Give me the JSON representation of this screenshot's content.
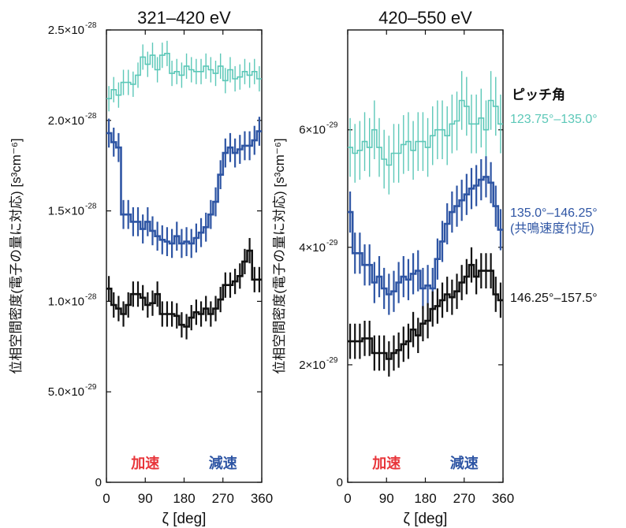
{
  "chart_data": [
    {
      "type": "line",
      "title": "321–420 eV",
      "xlabel": "ζ [deg]",
      "ylabel": "位相空間密度(電子の量に対応) [s³cm⁻⁶]",
      "xlim": [
        0,
        360
      ],
      "ylim": [
        0,
        2.5e-28
      ],
      "xticks": [
        "0",
        "90",
        "180",
        "270",
        "360"
      ],
      "yticks": [
        {
          "value": 0,
          "label": "0"
        },
        {
          "value": 5e-29,
          "label": "5.0×10",
          "exp": "-29"
        },
        {
          "value": 1e-28,
          "label": "1.0×10",
          "exp": "-28"
        },
        {
          "value": 1.5e-28,
          "label": "1.5×10",
          "exp": "-28"
        },
        {
          "value": 2e-28,
          "label": "2.0×10",
          "exp": "-28"
        },
        {
          "value": 2.5e-28,
          "label": "2.5×10",
          "exp": "-28"
        }
      ],
      "annotations": [
        {
          "text": "加速",
          "color": "#e8353a",
          "x": 90
        },
        {
          "text": "減速",
          "color": "#2e55a4",
          "x": 270
        }
      ],
      "x": [
        0,
        11.25,
        22.5,
        33.75,
        45,
        56.25,
        67.5,
        78.75,
        90,
        101.25,
        112.5,
        123.75,
        135,
        146.25,
        157.5,
        168.75,
        180,
        191.25,
        202.5,
        213.75,
        225,
        236.25,
        247.5,
        258.75,
        270,
        281.25,
        292.5,
        303.75,
        315,
        326.25,
        337.5,
        348.75
      ],
      "series": [
        {
          "name": "123.75°–135.0°",
          "color": "#5cc8b8",
          "values": [
            2.12e-28,
            2.17e-28,
            2.14e-28,
            2.21e-28,
            2.21e-28,
            2.2e-28,
            2.25e-28,
            2.35e-28,
            2.31e-28,
            2.36e-28,
            2.28e-28,
            2.36e-28,
            2.37e-28,
            2.26e-28,
            2.27e-28,
            2.25e-28,
            2.3e-28,
            2.28e-28,
            2.27e-28,
            2.27e-28,
            2.3e-28,
            2.28e-28,
            2.26e-28,
            2.3e-28,
            2.22e-28,
            2.28e-28,
            2.23e-28,
            2.24e-28,
            2.27e-28,
            2.25e-28,
            2.27e-28,
            2.23e-28
          ],
          "errors": [
            7e-30,
            7e-30,
            7e-30,
            7e-30,
            7e-30,
            7e-30,
            7e-30,
            7e-30,
            7e-30,
            7e-30,
            7e-30,
            7e-30,
            7e-30,
            7e-30,
            7e-30,
            7e-30,
            7e-30,
            7e-30,
            7e-30,
            7e-30,
            7e-30,
            7e-30,
            7e-30,
            7e-30,
            7e-30,
            7e-30,
            7e-30,
            7e-30,
            7e-30,
            7e-30,
            7e-30,
            7e-30
          ]
        },
        {
          "name": "135.0°–146.25°",
          "color": "#2e55a4",
          "values": [
            1.93e-28,
            1.88e-28,
            1.85e-28,
            1.48e-28,
            1.48e-28,
            1.44e-28,
            1.44e-28,
            1.4e-28,
            1.44e-28,
            1.39e-28,
            1.36e-28,
            1.34e-28,
            1.33e-28,
            1.32e-28,
            1.36e-28,
            1.32e-28,
            1.33e-28,
            1.32e-28,
            1.35e-28,
            1.38e-28,
            1.41e-28,
            1.48e-28,
            1.55e-28,
            1.7e-28,
            1.82e-28,
            1.85e-28,
            1.82e-28,
            1.84e-28,
            1.86e-28,
            1.86e-28,
            1.89e-28,
            1.94e-28
          ],
          "errors": [
            8e-30,
            8e-30,
            8e-30,
            8e-30,
            8e-30,
            8e-30,
            8e-30,
            8e-30,
            8e-30,
            8e-30,
            8e-30,
            8e-30,
            8e-30,
            8e-30,
            8e-30,
            8e-30,
            8e-30,
            8e-30,
            8e-30,
            8e-30,
            8e-30,
            8e-30,
            8e-30,
            8e-30,
            8e-30,
            8e-30,
            8e-30,
            8e-30,
            8e-30,
            8e-30,
            8e-30,
            8e-30
          ]
        },
        {
          "name": "146.25°–157.5°",
          "color": "#111111",
          "values": [
            1.07e-28,
            9.8e-29,
            9.6e-29,
            9.3e-29,
            9.8e-29,
            1.04e-28,
            1.04e-28,
            1.02e-28,
            9.8e-29,
            9.9e-29,
            1.04e-28,
            9.3e-29,
            9.3e-29,
            9.3e-29,
            9.2e-29,
            8.7e-29,
            8.6e-29,
            9.1e-29,
            9.4e-29,
            9.3e-29,
            9.6e-29,
            9.3e-29,
            9.6e-29,
            1.01e-28,
            1.09e-28,
            1.09e-28,
            1.11e-28,
            1.14e-28,
            1.22e-28,
            1.28e-28,
            1.12e-28,
            1.12e-28
          ],
          "errors": [
            7e-30,
            7e-30,
            7e-30,
            7e-30,
            7e-30,
            7e-30,
            7e-30,
            7e-30,
            7e-30,
            7e-30,
            7e-30,
            7e-30,
            7e-30,
            7e-30,
            7e-30,
            7e-30,
            7e-30,
            7e-30,
            7e-30,
            7e-30,
            7e-30,
            7e-30,
            7e-30,
            7e-30,
            7e-30,
            7e-30,
            7e-30,
            7e-30,
            7e-30,
            7e-30,
            7e-30,
            7e-30
          ]
        }
      ]
    },
    {
      "type": "line",
      "title": "420–550 eV",
      "xlabel": "ζ [deg]",
      "ylabel": "位相空間密度(電子の量に対応) [s³cm⁻⁶]",
      "xlim": [
        0,
        360
      ],
      "ylim": [
        0,
        7.7e-29
      ],
      "xticks": [
        "0",
        "90",
        "180",
        "270",
        "360"
      ],
      "yticks": [
        {
          "value": 0,
          "label": "0"
        },
        {
          "value": 2e-29,
          "label": "2×10",
          "exp": "-29"
        },
        {
          "value": 4e-29,
          "label": "4×10",
          "exp": "-29"
        },
        {
          "value": 6e-29,
          "label": "6×10",
          "exp": "-29"
        }
      ],
      "annotations": [
        {
          "text": "加速",
          "color": "#e8353a",
          "x": 90
        },
        {
          "text": "減速",
          "color": "#2e55a4",
          "x": 270
        }
      ],
      "legend_title": "ピッチ角",
      "legend_labels": [
        {
          "text": "123.75°–135.0°",
          "color": "#5cc8b8",
          "y": 6.2e-29
        },
        {
          "text": "135.0°–146.25°",
          "sub": "(共鳴速度付近)",
          "color": "#2e55a4",
          "y": 4.6e-29
        },
        {
          "text": "146.25°–157.5°",
          "color": "#111111",
          "y": 3.15e-29
        }
      ],
      "x": [
        0,
        11.25,
        22.5,
        33.75,
        45,
        56.25,
        67.5,
        78.75,
        90,
        101.25,
        112.5,
        123.75,
        135,
        146.25,
        157.5,
        168.75,
        180,
        191.25,
        202.5,
        213.75,
        225,
        236.25,
        247.5,
        258.75,
        270,
        281.25,
        292.5,
        303.75,
        315,
        326.25,
        337.5,
        348.75
      ],
      "series": [
        {
          "name": "123.75°–135.0°",
          "color": "#5cc8b8",
          "values": [
            5.7e-29,
            5.6e-29,
            5.65e-29,
            5.8e-29,
            5.7e-29,
            6e-29,
            5.7e-29,
            5.5e-29,
            5.4e-29,
            5.6e-29,
            5.6e-29,
            5.75e-29,
            5.8e-29,
            5.65e-29,
            5.8e-29,
            5.8e-29,
            5.7e-29,
            5.9e-29,
            6e-29,
            6e-29,
            5.9e-29,
            6.1e-29,
            6.15e-29,
            6.5e-29,
            6.4e-29,
            6.1e-29,
            6.1e-29,
            6.2e-29,
            6e-29,
            6.5e-29,
            6.4e-29,
            6.1e-29
          ],
          "errors": [
            5e-30,
            5e-30,
            5e-30,
            5e-30,
            5e-30,
            5e-30,
            5e-30,
            5e-30,
            5e-30,
            5e-30,
            5e-30,
            5e-30,
            5e-30,
            5e-30,
            5e-30,
            5e-30,
            5e-30,
            5e-30,
            5e-30,
            5e-30,
            5e-30,
            5e-30,
            5e-30,
            5e-30,
            5e-30,
            5e-30,
            5e-30,
            5e-30,
            5e-30,
            5e-30,
            5e-30,
            5e-30
          ]
        },
        {
          "name": "135.0°–146.25°",
          "color": "#2e55a4",
          "values": [
            4.6e-29,
            3.9e-29,
            3.9e-29,
            3.7e-29,
            3.7e-29,
            3.4e-29,
            3.5e-29,
            3.3e-29,
            3.2e-29,
            3.25e-29,
            3.4e-29,
            3.5e-29,
            3.45e-29,
            3.55e-29,
            3.6e-29,
            3.3e-29,
            3.35e-29,
            3.3e-29,
            3.8e-29,
            4.1e-29,
            4.4e-29,
            4.6e-29,
            4.7e-29,
            4.8e-29,
            4.9e-29,
            5e-29,
            5.05e-29,
            5.15e-29,
            5.2e-29,
            5.1e-29,
            4.7e-29,
            4.3e-29
          ],
          "errors": [
            3.5e-30,
            3.5e-30,
            3.5e-30,
            3.5e-30,
            3.5e-30,
            3.5e-30,
            3.5e-30,
            3.5e-30,
            3.5e-30,
            3.5e-30,
            3.5e-30,
            3.5e-30,
            3.5e-30,
            3.5e-30,
            3.5e-30,
            3.5e-30,
            3.5e-30,
            3.5e-30,
            3.5e-30,
            3.5e-30,
            3.5e-30,
            3.5e-30,
            3.5e-30,
            3.5e-30,
            3.5e-30,
            3.5e-30,
            3.5e-30,
            3.5e-30,
            3.5e-30,
            3.5e-30,
            3.5e-30,
            3.5e-30
          ]
        },
        {
          "name": "146.25°–157.5°",
          "color": "#111111",
          "values": [
            2.4e-29,
            2.4e-29,
            2.4e-29,
            2.45e-29,
            2.45e-29,
            2.2e-29,
            2.2e-29,
            2.2e-29,
            2.1e-29,
            2.2e-29,
            2.25e-29,
            2.35e-29,
            2.4e-29,
            2.6e-29,
            2.5e-29,
            2.7e-29,
            2.75e-29,
            2.95e-29,
            3e-29,
            3.1e-29,
            3.2e-29,
            3.15e-29,
            3.25e-29,
            3.4e-29,
            3.5e-29,
            3.7e-29,
            3.5e-29,
            3.6e-29,
            3.6e-29,
            3.6e-29,
            3.2e-29,
            3.1e-29
          ],
          "errors": [
            3e-30,
            3e-30,
            3e-30,
            3e-30,
            3e-30,
            3e-30,
            3e-30,
            3e-30,
            3e-30,
            3e-30,
            3e-30,
            3e-30,
            3e-30,
            3e-30,
            3e-30,
            3e-30,
            3e-30,
            3e-30,
            3e-30,
            3e-30,
            3e-30,
            3e-30,
            3e-30,
            3e-30,
            3e-30,
            3e-30,
            3e-30,
            3e-30,
            3e-30,
            3e-30,
            3e-30,
            3e-30
          ]
        }
      ]
    }
  ]
}
